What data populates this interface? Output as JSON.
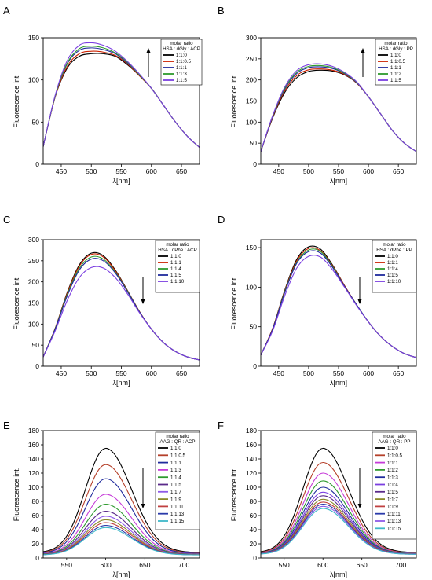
{
  "figure": {
    "panels": [
      "A",
      "B",
      "C",
      "D",
      "E",
      "F"
    ]
  },
  "chart_data": [
    {
      "panel": "A",
      "type": "line",
      "xlabel": "λ[nm]",
      "ylabel": "Fluorescence int.",
      "xlim": [
        420,
        680
      ],
      "ylim": [
        0,
        150
      ],
      "xticks": [
        450,
        500,
        550,
        600,
        650
      ],
      "yticks": [
        0,
        50,
        100,
        150
      ],
      "legend_title": [
        "molar ratio",
        "HSA : dGly : ACP"
      ],
      "arrow": "up",
      "peak_x": 505,
      "series": [
        {
          "name": "1:1:0",
          "color": "#000000",
          "x": [
            420,
            440,
            460,
            480,
            500,
            520,
            540,
            560,
            580,
            600,
            620,
            640,
            660,
            680
          ],
          "values": [
            21,
            80,
            114,
            128,
            131,
            131,
            128,
            118,
            105,
            90,
            70,
            50,
            33,
            20
          ]
        },
        {
          "name": "1:1:0.5",
          "color": "#cc2200",
          "x": [
            420,
            440,
            460,
            480,
            500,
            520,
            540,
            560,
            580,
            600,
            620,
            640,
            660,
            680
          ],
          "values": [
            21,
            80,
            116,
            131,
            134,
            133,
            129,
            119,
            105,
            90,
            70,
            50,
            33,
            20
          ]
        },
        {
          "name": "1:1:1",
          "color": "#1f2a9c",
          "x": [
            420,
            440,
            460,
            480,
            500,
            520,
            540,
            560,
            580,
            600,
            620,
            640,
            660,
            680
          ],
          "values": [
            21,
            81,
            119,
            135,
            138,
            136,
            131,
            120,
            106,
            90,
            70,
            50,
            33,
            20
          ]
        },
        {
          "name": "1:1:3",
          "color": "#2e9a2e",
          "x": [
            420,
            440,
            460,
            480,
            500,
            520,
            540,
            560,
            580,
            600,
            620,
            640,
            660,
            680
          ],
          "values": [
            21,
            81,
            120,
            137,
            140,
            138,
            132,
            121,
            106,
            90,
            70,
            50,
            33,
            20
          ]
        },
        {
          "name": "1:1:5",
          "color": "#7b3fe0",
          "x": [
            420,
            440,
            460,
            480,
            500,
            520,
            540,
            560,
            580,
            600,
            620,
            640,
            660,
            680
          ],
          "values": [
            21,
            82,
            123,
            141,
            144,
            141,
            134,
            122,
            107,
            90,
            70,
            50,
            33,
            20
          ]
        }
      ]
    },
    {
      "panel": "B",
      "type": "line",
      "xlabel": "λ[nm]",
      "ylabel": "Fluorescence int.",
      "xlim": [
        420,
        680
      ],
      "ylim": [
        0,
        300
      ],
      "xticks": [
        450,
        500,
        550,
        600,
        650
      ],
      "yticks": [
        0,
        50,
        100,
        150,
        200,
        250,
        300
      ],
      "legend_title": [
        "molar ratio",
        "HSA : dGly : PP"
      ],
      "arrow": "up",
      "peak_x": 520,
      "series": [
        {
          "name": "1:1:0",
          "color": "#000000",
          "x": [
            420,
            440,
            460,
            480,
            500,
            520,
            540,
            560,
            580,
            600,
            620,
            640,
            660,
            680
          ],
          "values": [
            30,
            110,
            170,
            205,
            220,
            223,
            221,
            212,
            193,
            160,
            120,
            80,
            50,
            30
          ]
        },
        {
          "name": "1:1:0.5",
          "color": "#cc2200",
          "x": [
            420,
            440,
            460,
            480,
            500,
            520,
            540,
            560,
            580,
            600,
            620,
            640,
            660,
            680
          ],
          "values": [
            30,
            112,
            174,
            210,
            224,
            226,
            223,
            213,
            193,
            160,
            120,
            80,
            50,
            30
          ]
        },
        {
          "name": "1:1:1",
          "color": "#1f2a9c",
          "x": [
            420,
            440,
            460,
            480,
            500,
            520,
            540,
            560,
            580,
            600,
            620,
            640,
            660,
            680
          ],
          "values": [
            30,
            114,
            178,
            215,
            229,
            231,
            227,
            215,
            194,
            160,
            120,
            80,
            50,
            30
          ]
        },
        {
          "name": "1:1:2",
          "color": "#2e9a2e",
          "x": [
            420,
            440,
            460,
            480,
            500,
            520,
            540,
            560,
            580,
            600,
            620,
            640,
            660,
            680
          ],
          "values": [
            30,
            115,
            180,
            218,
            232,
            234,
            229,
            216,
            195,
            160,
            120,
            80,
            50,
            30
          ]
        },
        {
          "name": "1:1:5",
          "color": "#7b3fe0",
          "x": [
            420,
            440,
            460,
            480,
            500,
            520,
            540,
            560,
            580,
            600,
            620,
            640,
            660,
            680
          ],
          "values": [
            30,
            116,
            183,
            222,
            236,
            238,
            232,
            218,
            196,
            160,
            120,
            80,
            50,
            30
          ]
        }
      ]
    },
    {
      "panel": "C",
      "type": "line",
      "xlabel": "λ[nm]",
      "ylabel": "Fluorescence int.",
      "xlim": [
        420,
        680
      ],
      "ylim": [
        0,
        300
      ],
      "xticks": [
        450,
        500,
        550,
        600,
        650
      ],
      "yticks": [
        0,
        50,
        100,
        150,
        200,
        250,
        300
      ],
      "legend_title": [
        "molar ratio",
        "HSA : dPhe : ACP"
      ],
      "arrow": "down",
      "peak_x": 510,
      "series": [
        {
          "name": "1:1:0",
          "color": "#000000",
          "x": [
            420,
            440,
            460,
            480,
            500,
            520,
            540,
            560,
            580,
            600,
            620,
            640,
            660,
            680
          ],
          "values": [
            22,
            90,
            175,
            240,
            268,
            262,
            228,
            180,
            130,
            88,
            56,
            35,
            22,
            15
          ]
        },
        {
          "name": "1:1:1",
          "color": "#cc2200",
          "x": [
            420,
            440,
            460,
            480,
            500,
            520,
            540,
            560,
            580,
            600,
            620,
            640,
            660,
            680
          ],
          "values": [
            22,
            90,
            173,
            237,
            265,
            259,
            226,
            179,
            130,
            88,
            56,
            35,
            22,
            15
          ]
        },
        {
          "name": "1:1:4",
          "color": "#2e9a2e",
          "x": [
            420,
            440,
            460,
            480,
            500,
            520,
            540,
            560,
            580,
            600,
            620,
            640,
            660,
            680
          ],
          "values": [
            22,
            89,
            170,
            232,
            259,
            254,
            223,
            178,
            129,
            88,
            56,
            35,
            22,
            15
          ]
        },
        {
          "name": "1:1:5",
          "color": "#1f2a9c",
          "x": [
            420,
            440,
            460,
            480,
            500,
            520,
            540,
            560,
            580,
            600,
            620,
            640,
            660,
            680
          ],
          "values": [
            22,
            88,
            167,
            228,
            254,
            250,
            221,
            177,
            129,
            88,
            56,
            35,
            22,
            15
          ]
        },
        {
          "name": "1:1:10",
          "color": "#7b3fe0",
          "x": [
            420,
            440,
            460,
            480,
            500,
            520,
            540,
            560,
            580,
            600,
            620,
            640,
            660,
            680
          ],
          "values": [
            22,
            84,
            156,
            210,
            234,
            233,
            210,
            172,
            127,
            88,
            56,
            35,
            22,
            15
          ]
        }
      ]
    },
    {
      "panel": "D",
      "type": "line",
      "xlabel": "λ[nm]",
      "ylabel": "Fluorescence int.",
      "xlim": [
        420,
        680
      ],
      "ylim": [
        0,
        160
      ],
      "xticks": [
        450,
        500,
        550,
        600,
        650
      ],
      "yticks": [
        0,
        50,
        100,
        150
      ],
      "legend_title": [
        "molar ratio",
        "HSA : dPhe : PP"
      ],
      "arrow": "down",
      "peak_x": 510,
      "series": [
        {
          "name": "1:1:0",
          "color": "#000000",
          "x": [
            420,
            440,
            460,
            480,
            500,
            520,
            540,
            560,
            580,
            600,
            620,
            640,
            660,
            680
          ],
          "values": [
            14,
            48,
            96,
            135,
            151,
            148,
            128,
            102,
            78,
            56,
            38,
            25,
            16,
            11
          ]
        },
        {
          "name": "1:1:1",
          "color": "#cc2200",
          "x": [
            420,
            440,
            460,
            480,
            500,
            520,
            540,
            560,
            580,
            600,
            620,
            640,
            660,
            680
          ],
          "values": [
            14,
            48,
            95,
            133,
            149,
            146,
            127,
            102,
            78,
            56,
            38,
            25,
            16,
            11
          ]
        },
        {
          "name": "1:1:4",
          "color": "#2e9a2e",
          "x": [
            420,
            440,
            460,
            480,
            500,
            520,
            540,
            560,
            580,
            600,
            620,
            640,
            660,
            680
          ],
          "values": [
            14,
            47,
            94,
            131,
            147,
            145,
            126,
            101,
            78,
            56,
            38,
            25,
            16,
            11
          ]
        },
        {
          "name": "1:1:5",
          "color": "#1f2a9c",
          "x": [
            420,
            440,
            460,
            480,
            500,
            520,
            540,
            560,
            580,
            600,
            620,
            640,
            660,
            680
          ],
          "values": [
            14,
            47,
            93,
            130,
            145,
            143,
            125,
            101,
            78,
            56,
            38,
            25,
            16,
            11
          ]
        },
        {
          "name": "1:1:10",
          "color": "#7b3fe0",
          "x": [
            420,
            440,
            460,
            480,
            500,
            520,
            540,
            560,
            580,
            600,
            620,
            640,
            660,
            680
          ],
          "values": [
            14,
            45,
            89,
            124,
            139,
            138,
            122,
            100,
            77,
            56,
            38,
            25,
            16,
            11
          ]
        }
      ]
    },
    {
      "panel": "E",
      "type": "line",
      "xlabel": "λ[nm]",
      "ylabel": "Fluorescence int.",
      "xlim": [
        520,
        720
      ],
      "ylim": [
        0,
        180
      ],
      "xticks": [
        550,
        600,
        650,
        700
      ],
      "yticks": [
        0,
        20,
        40,
        60,
        80,
        100,
        120,
        140,
        160,
        180
      ],
      "legend_title": [
        "molar ratio",
        "AAG : QR : ACP"
      ],
      "arrow": "down",
      "peak_x": 600,
      "series": [
        {
          "name": "1:1:0",
          "color": "#000000",
          "peak": 155
        },
        {
          "name": "1:1:0.5",
          "color": "#b5402a",
          "peak": 132
        },
        {
          "name": "1:1:1",
          "color": "#1f2a9c",
          "peak": 112
        },
        {
          "name": "1:1:3",
          "color": "#c63bd8",
          "peak": 90
        },
        {
          "name": "1:1:4",
          "color": "#2e9a2e",
          "peak": 76
        },
        {
          "name": "1:1:5",
          "color": "#5a2a8a",
          "peak": 66
        },
        {
          "name": "1:1:7",
          "color": "#8f5ae8",
          "peak": 59
        },
        {
          "name": "1:1:9",
          "color": "#8a8a2a",
          "peak": 54
        },
        {
          "name": "1:1:11",
          "color": "#c04040",
          "peak": 50
        },
        {
          "name": "1:1:13",
          "color": "#2a3aaa",
          "peak": 46
        },
        {
          "name": "1:1:15",
          "color": "#3fb8c8",
          "peak": 43
        }
      ]
    },
    {
      "panel": "F",
      "type": "line",
      "xlabel": "λ[nm]",
      "ylabel": "Fluorescence int.",
      "xlim": [
        520,
        720
      ],
      "ylim": [
        0,
        180
      ],
      "xticks": [
        550,
        600,
        650,
        700
      ],
      "yticks": [
        0,
        20,
        40,
        60,
        80,
        100,
        120,
        140,
        160,
        180
      ],
      "legend_title": [
        "molar ratio",
        "AAG : QR : PP"
      ],
      "arrow": "down",
      "peak_x": 600,
      "series": [
        {
          "name": "1:1:0",
          "color": "#000000",
          "peak": 155
        },
        {
          "name": "1:1:0.5",
          "color": "#b5402a",
          "peak": 135
        },
        {
          "name": "1:1:1",
          "color": "#c63bd8",
          "peak": 120
        },
        {
          "name": "1:1:2",
          "color": "#2e9a2e",
          "peak": 109
        },
        {
          "name": "1:1:3",
          "color": "#1f2a9c",
          "peak": 100
        },
        {
          "name": "1:1:4",
          "color": "#7b3fe0",
          "peak": 93
        },
        {
          "name": "1:1:5",
          "color": "#5a2a8a",
          "peak": 88
        },
        {
          "name": "1:1:7",
          "color": "#8a8a2a",
          "peak": 83
        },
        {
          "name": "1:1:9",
          "color": "#c04040",
          "peak": 79
        },
        {
          "name": "1:1:11",
          "color": "#2a3aaa",
          "peak": 76
        },
        {
          "name": "1:1:13",
          "color": "#8f5ae8",
          "peak": 73
        },
        {
          "name": "1:1:15",
          "color": "#3fb8c8",
          "peak": 70
        }
      ]
    }
  ]
}
